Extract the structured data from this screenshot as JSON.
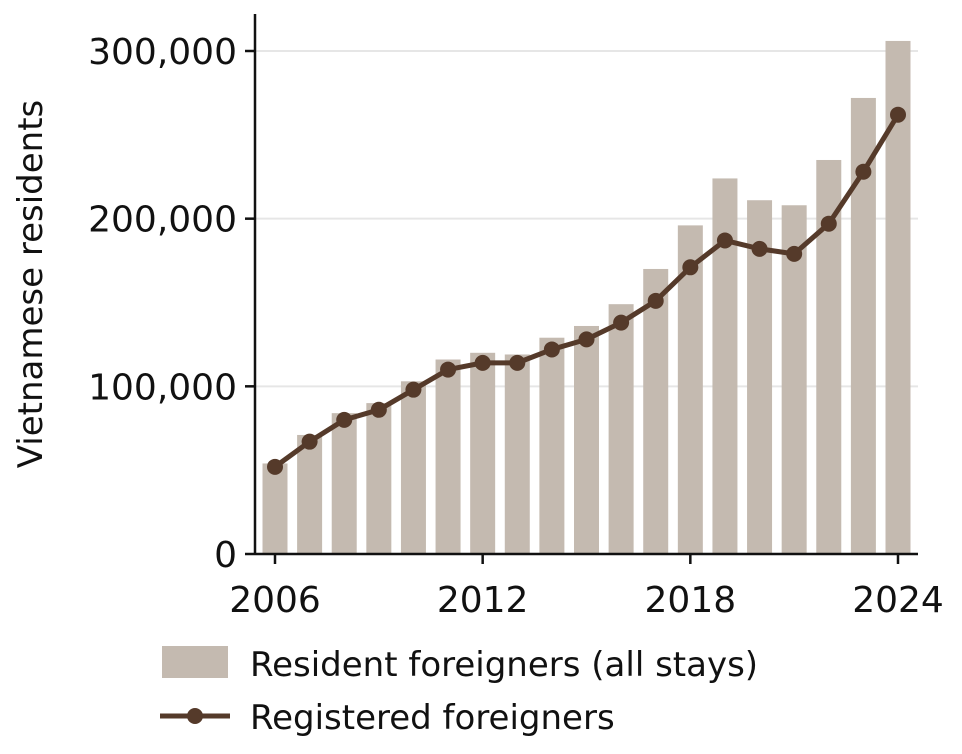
{
  "chart_data": {
    "type": "bar",
    "title": "",
    "xlabel": "",
    "ylabel": "Vietnamese residents",
    "x": [
      2006,
      2007,
      2008,
      2009,
      2010,
      2011,
      2012,
      2013,
      2014,
      2015,
      2016,
      2017,
      2018,
      2019,
      2020,
      2021,
      2022,
      2023,
      2024
    ],
    "x_ticks": [
      2006,
      2012,
      2018,
      2024
    ],
    "ylim": [
      0,
      320000
    ],
    "y_ticks": [
      0,
      100000,
      200000,
      300000
    ],
    "y_tick_labels": [
      "0",
      "100,000",
      "200,000",
      "300,000"
    ],
    "grid": "horizontal",
    "legend_position": "bottom",
    "series": [
      {
        "name": "Resident foreigners (all stays)",
        "type": "bar",
        "color": "#c4bab0",
        "values": [
          54000,
          71000,
          84000,
          90000,
          103000,
          116000,
          120000,
          119000,
          129000,
          136000,
          149000,
          170000,
          196000,
          224000,
          211000,
          208000,
          235000,
          272000,
          306000
        ]
      },
      {
        "name": "Registered foreigners",
        "type": "line",
        "color": "#553a2a",
        "values": [
          52000,
          67000,
          80000,
          86000,
          98000,
          110000,
          114000,
          114000,
          122000,
          128000,
          138000,
          151000,
          171000,
          187000,
          182000,
          179000,
          197000,
          228000,
          262000
        ]
      }
    ]
  }
}
